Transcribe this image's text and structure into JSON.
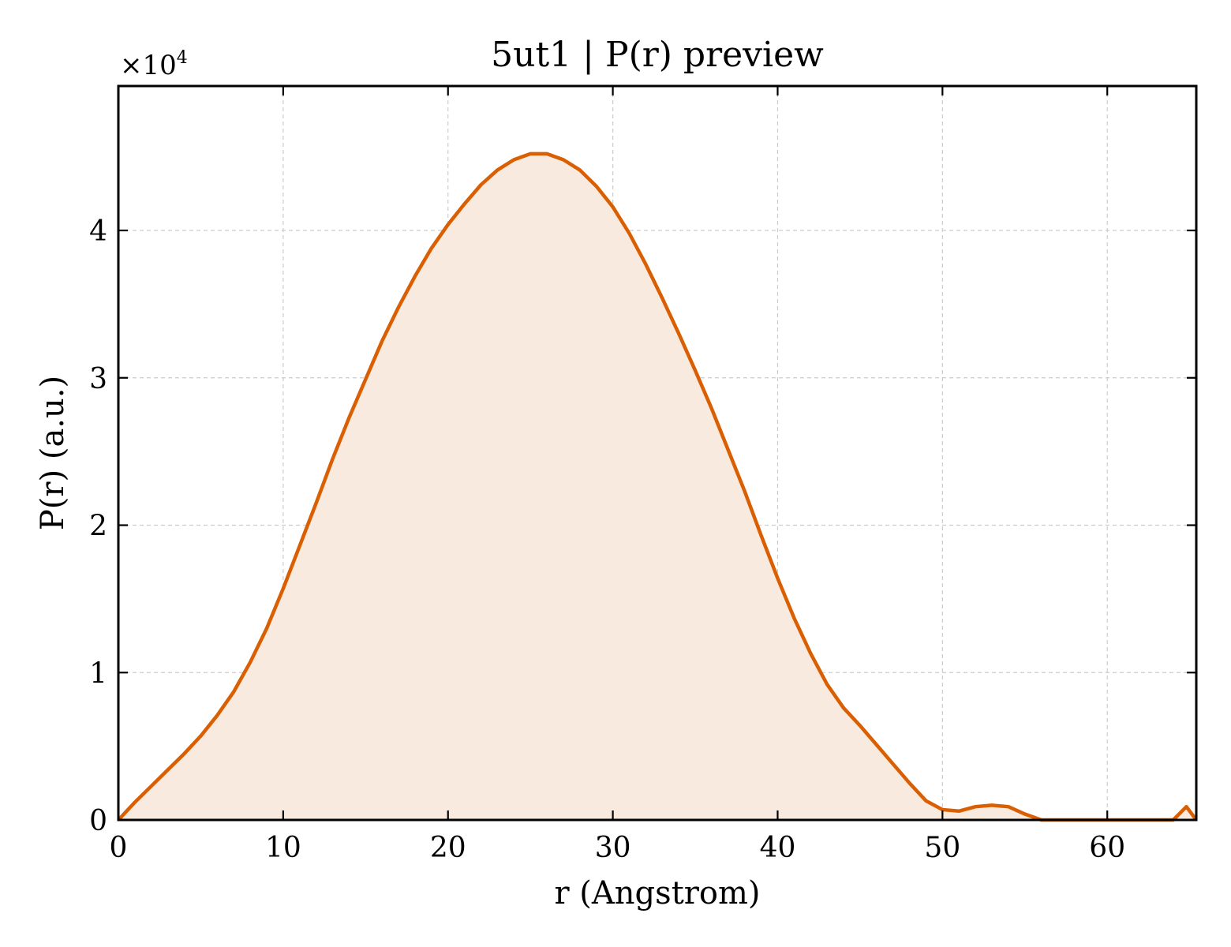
{
  "chart_data": {
    "type": "area",
    "title": "5ut1 | P(r) preview",
    "xlabel": "r (Angstrom)",
    "ylabel": "P(r) (a.u.)",
    "y_multiplier": "×10",
    "y_multiplier_exp": "4",
    "xlim": [
      0,
      65.4
    ],
    "ylim": [
      0,
      49800
    ],
    "x_ticks": [
      0,
      10,
      20,
      30,
      40,
      50,
      60
    ],
    "x_tick_labels": [
      "0",
      "10",
      "20",
      "30",
      "40",
      "50",
      "60"
    ],
    "y_ticks": [
      0,
      10000,
      20000,
      30000,
      40000
    ],
    "y_tick_labels": [
      "0",
      "1",
      "2",
      "3",
      "4"
    ],
    "grid": true,
    "line_color": "#d95f02",
    "fill_color": "#f9eadf",
    "series": [
      {
        "x": [
          0,
          1,
          2,
          3,
          4,
          5,
          6,
          7,
          8,
          9,
          10,
          11,
          12,
          13,
          14,
          15,
          16,
          17,
          18,
          19,
          20,
          21,
          22,
          23,
          24,
          25,
          26,
          27,
          28,
          29,
          30,
          31,
          32,
          33,
          34,
          35,
          36,
          37,
          38,
          39,
          40,
          41,
          42,
          43,
          44,
          45,
          46,
          47,
          48,
          49,
          50,
          51,
          52,
          53,
          54,
          55,
          56,
          57,
          58,
          59,
          60,
          61,
          62,
          63,
          64,
          64.8,
          65.4
        ],
        "y": [
          0,
          1200,
          2300,
          3400,
          4500,
          5700,
          7100,
          8700,
          10700,
          13000,
          15700,
          18600,
          21500,
          24500,
          27300,
          29900,
          32500,
          34800,
          36900,
          38800,
          40400,
          41800,
          43100,
          44100,
          44800,
          45200,
          45200,
          44800,
          44100,
          43000,
          41600,
          39800,
          37700,
          35400,
          33000,
          30500,
          27900,
          25100,
          22300,
          19300,
          16400,
          13700,
          11300,
          9200,
          7600,
          6400,
          5100,
          3800,
          2500,
          1300,
          700,
          600,
          900,
          1000,
          900,
          400,
          0,
          0,
          0,
          0,
          0,
          0,
          0,
          0,
          0,
          900,
          0
        ]
      }
    ]
  }
}
